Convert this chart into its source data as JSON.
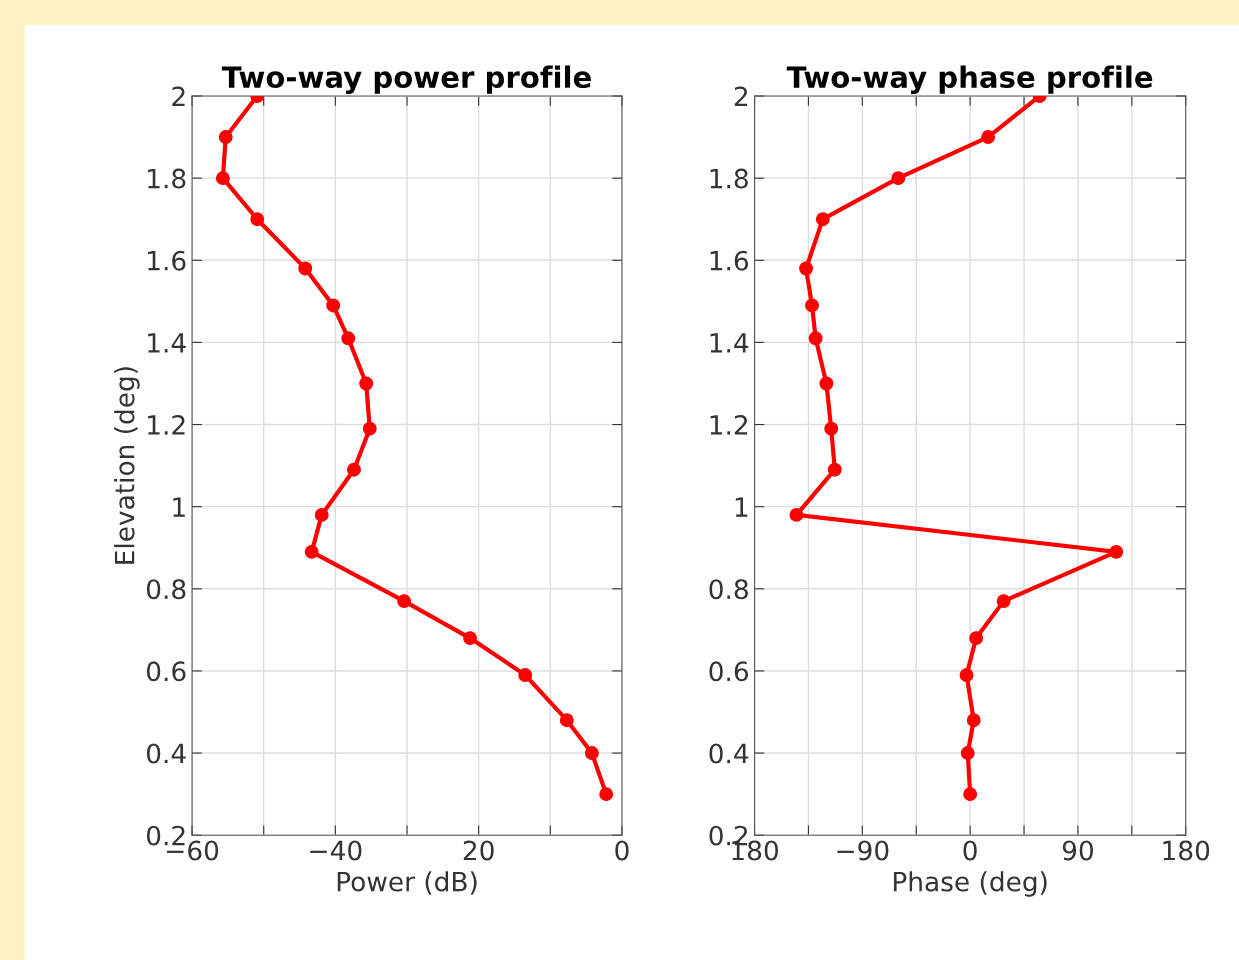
{
  "chart_data": [
    {
      "type": "line",
      "title": "Two-way power profile",
      "xlabel": "Power (dB)",
      "ylabel": "Elevation (deg)",
      "xlim": [
        -60,
        0
      ],
      "xticks": [
        {
          "value": -60,
          "label": "−60"
        },
        {
          "value": -50,
          "label": null
        },
        {
          "value": -40,
          "label": "−40"
        },
        {
          "value": -30,
          "label": null
        },
        {
          "value": -20,
          "label": "20"
        },
        {
          "value": -10,
          "label": null
        },
        {
          "value": 0,
          "label": "0"
        }
      ],
      "ylim": [
        0.2,
        2
      ],
      "yticks": [
        0.2,
        0.4,
        0.6,
        0.8,
        1,
        1.2,
        1.4,
        1.6,
        1.8,
        2
      ],
      "grid": true,
      "line_style": "solid",
      "series": [
        {
          "color": "#ff0000",
          "marker": "circle",
          "x": [
            -50.9,
            -55.3,
            -55.7,
            -50.9,
            -44.2,
            -40.3,
            -38.2,
            -35.7,
            -35.2,
            -37.4,
            -41.9,
            -43.3,
            -30.4,
            -21.2,
            -13.5,
            -7.7,
            -4.2,
            -2.2
          ],
          "values": [
            2.0,
            1.9,
            1.8,
            1.7,
            1.58,
            1.49,
            1.41,
            1.3,
            1.19,
            1.09,
            0.98,
            0.89,
            0.77,
            0.68,
            0.59,
            0.48,
            0.4,
            0.3
          ]
        }
      ]
    },
    {
      "type": "line",
      "title": "Two-way phase profile",
      "xlabel": "Phase (deg)",
      "xlim": [
        -180,
        180
      ],
      "xticks": [
        {
          "value": -180,
          "label": "180"
        },
        {
          "value": -135,
          "label": null
        },
        {
          "value": -90,
          "label": "−90"
        },
        {
          "value": -45,
          "label": null
        },
        {
          "value": 0,
          "label": "0"
        },
        {
          "value": 45,
          "label": null
        },
        {
          "value": 90,
          "label": "90"
        },
        {
          "value": 135,
          "label": null
        },
        {
          "value": 180,
          "label": "180"
        }
      ],
      "ylim": [
        0.2,
        2
      ],
      "yticks": [
        0.2,
        0.4,
        0.6,
        0.8,
        1,
        1.2,
        1.4,
        1.6,
        1.8,
        2
      ],
      "grid": true,
      "line_style": "solid",
      "series": [
        {
          "color": "#ff0000",
          "marker": "circle",
          "x": [
            58,
            15,
            -60,
            -123,
            -137,
            -132,
            -129,
            -120,
            -116,
            -113,
            -145,
            122,
            28,
            5,
            -3,
            3,
            -2,
            0
          ],
          "values": [
            2.0,
            1.9,
            1.8,
            1.7,
            1.58,
            1.49,
            1.41,
            1.3,
            1.19,
            1.09,
            0.98,
            0.89,
            0.77,
            0.68,
            0.59,
            0.48,
            0.4,
            0.3
          ]
        }
      ]
    }
  ]
}
